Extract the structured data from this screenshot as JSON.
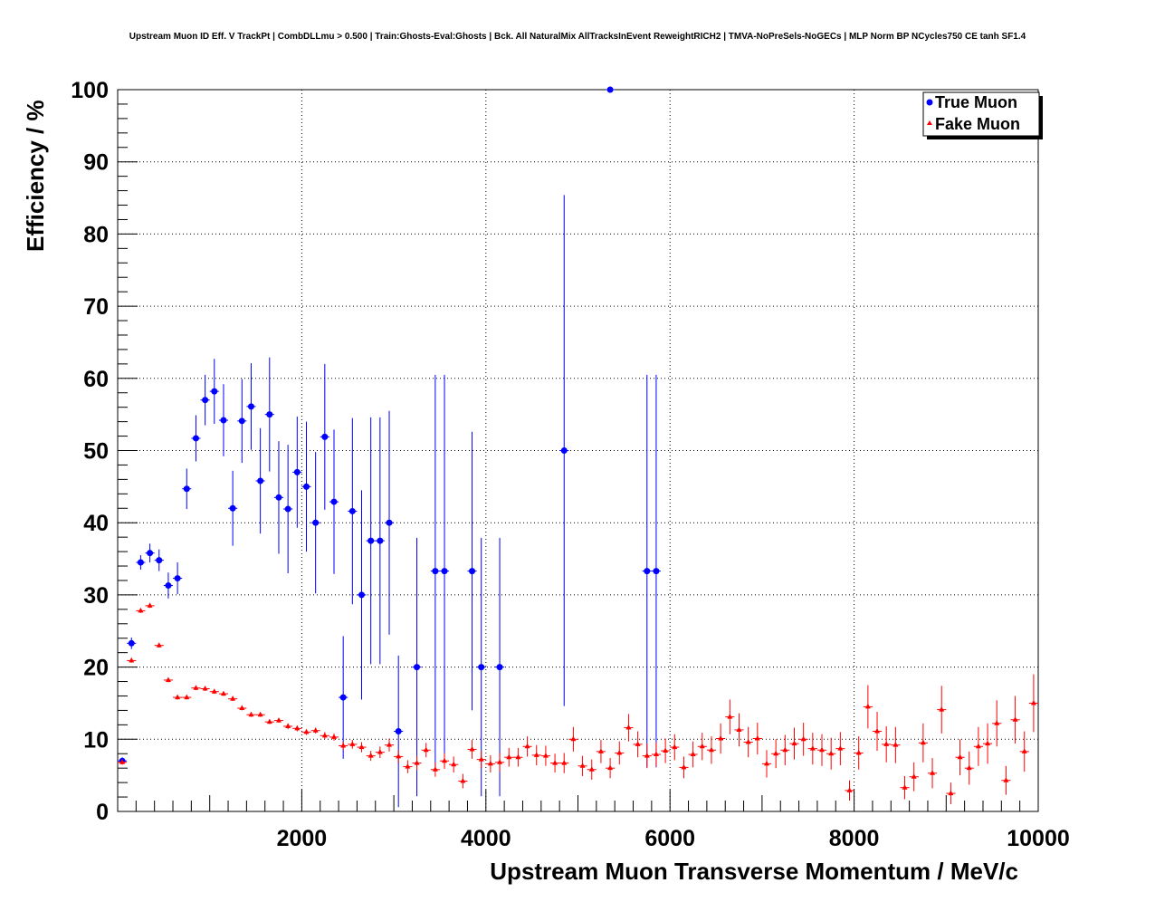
{
  "chart_data": {
    "type": "scatter",
    "title": "Upstream Muon ID Eff. V TrackPt | CombDLLmu > 0.500 | Train:Ghosts-Eval:Ghosts | Bck. All NaturalMix AllTracksInEvent ReweightRICH2 | TMVA-NoPreSels-NoGECs | MLP Norm BP NCycles750 CE tanh SF1.4",
    "xlabel": "Upstream Muon Transverse Momentum / MeV/c",
    "ylabel": "Efficiency / %",
    "xlim": [
      0,
      10000
    ],
    "ylim": [
      0,
      100
    ],
    "x_ticks": [
      "2000",
      "4000",
      "6000",
      "8000",
      "10000"
    ],
    "y_ticks": [
      "0",
      "10",
      "20",
      "30",
      "40",
      "50",
      "60",
      "70",
      "80",
      "90",
      "100"
    ],
    "grid": true,
    "legend_position": "top-right",
    "series": [
      {
        "name": "True Muon",
        "color": "#0000ff",
        "marker": "circle",
        "points": [
          {
            "x": 50,
            "y": 7.0,
            "err": 0.5
          },
          {
            "x": 150,
            "y": 23.3,
            "err": 0.8
          },
          {
            "x": 250,
            "y": 34.5,
            "err": 1.0
          },
          {
            "x": 350,
            "y": 35.8,
            "err": 1.3
          },
          {
            "x": 450,
            "y": 34.8,
            "err": 1.5
          },
          {
            "x": 550,
            "y": 31.3,
            "err": 1.8
          },
          {
            "x": 650,
            "y": 32.3,
            "err": 2.2
          },
          {
            "x": 750,
            "y": 44.7,
            "err": 2.8
          },
          {
            "x": 850,
            "y": 51.7,
            "err": 3.2
          },
          {
            "x": 950,
            "y": 57.0,
            "err": 3.5
          },
          {
            "x": 1050,
            "y": 58.2,
            "err": 4.5
          },
          {
            "x": 1150,
            "y": 54.2,
            "err": 5.0
          },
          {
            "x": 1250,
            "y": 42.0,
            "err": 5.2
          },
          {
            "x": 1350,
            "y": 54.1,
            "err": 5.8
          },
          {
            "x": 1450,
            "y": 56.1,
            "err": 6.0
          },
          {
            "x": 1550,
            "y": 45.8,
            "err": 7.3
          },
          {
            "x": 1650,
            "y": 55.0,
            "err": 7.9
          },
          {
            "x": 1750,
            "y": 43.5,
            "err": 7.8
          },
          {
            "x": 1850,
            "y": 41.9,
            "err": 8.9
          },
          {
            "x": 1950,
            "y": 47.0,
            "err": 7.7
          },
          {
            "x": 2050,
            "y": 45.0,
            "err": 9.0
          },
          {
            "x": 2150,
            "y": 40.0,
            "err": 9.8
          },
          {
            "x": 2250,
            "y": 51.9,
            "err": 10.1
          },
          {
            "x": 2350,
            "y": 42.9,
            "err": 10.0
          },
          {
            "x": 2450,
            "y": 15.8,
            "err": 8.5
          },
          {
            "x": 2550,
            "y": 41.6,
            "err": 12.9
          },
          {
            "x": 2650,
            "y": 30.0,
            "err": 14.5
          },
          {
            "x": 2750,
            "y": 37.5,
            "err": 17.1
          },
          {
            "x": 2850,
            "y": 37.5,
            "err": 17.1
          },
          {
            "x": 2950,
            "y": 40.0,
            "err": 15.5
          },
          {
            "x": 3050,
            "y": 11.1,
            "err": 10.5
          },
          {
            "x": 3250,
            "y": 20.0,
            "err": 17.9
          },
          {
            "x": 3450,
            "y": 33.3,
            "err": 27.2
          },
          {
            "x": 3550,
            "y": 33.3,
            "err": 27.2
          },
          {
            "x": 3850,
            "y": 33.3,
            "err": 19.3
          },
          {
            "x": 3950,
            "y": 20.0,
            "err": 17.9
          },
          {
            "x": 4150,
            "y": 20.0,
            "err": 17.9
          },
          {
            "x": 4850,
            "y": 50.0,
            "err": 35.4
          },
          {
            "x": 5350,
            "y": 100.0,
            "err": 0.0
          },
          {
            "x": 5750,
            "y": 33.3,
            "err": 27.2
          },
          {
            "x": 5850,
            "y": 33.3,
            "err": 27.2
          }
        ]
      },
      {
        "name": "Fake Muon",
        "color": "#ff0000",
        "marker": "triangle",
        "points": [
          {
            "x": 50,
            "y": 6.8,
            "err": 0.3
          },
          {
            "x": 150,
            "y": 20.9,
            "err": 0.3
          },
          {
            "x": 250,
            "y": 27.8,
            "err": 0.3
          },
          {
            "x": 350,
            "y": 28.5,
            "err": 0.3
          },
          {
            "x": 450,
            "y": 23.0,
            "err": 0.3
          },
          {
            "x": 550,
            "y": 18.2,
            "err": 0.3
          },
          {
            "x": 650,
            "y": 15.8,
            "err": 0.3
          },
          {
            "x": 750,
            "y": 15.8,
            "err": 0.3
          },
          {
            "x": 850,
            "y": 17.1,
            "err": 0.3
          },
          {
            "x": 950,
            "y": 17.0,
            "err": 0.3
          },
          {
            "x": 1050,
            "y": 16.6,
            "err": 0.3
          },
          {
            "x": 1150,
            "y": 16.3,
            "err": 0.3
          },
          {
            "x": 1250,
            "y": 15.6,
            "err": 0.3
          },
          {
            "x": 1350,
            "y": 14.3,
            "err": 0.3
          },
          {
            "x": 1450,
            "y": 13.4,
            "err": 0.3
          },
          {
            "x": 1550,
            "y": 13.4,
            "err": 0.3
          },
          {
            "x": 1650,
            "y": 12.4,
            "err": 0.3
          },
          {
            "x": 1750,
            "y": 12.6,
            "err": 0.3
          },
          {
            "x": 1850,
            "y": 11.8,
            "err": 0.4
          },
          {
            "x": 1950,
            "y": 11.5,
            "err": 0.4
          },
          {
            "x": 2050,
            "y": 11.0,
            "err": 0.4
          },
          {
            "x": 2150,
            "y": 11.2,
            "err": 0.4
          },
          {
            "x": 2250,
            "y": 10.5,
            "err": 0.5
          },
          {
            "x": 2350,
            "y": 10.3,
            "err": 0.5
          },
          {
            "x": 2450,
            "y": 9.1,
            "err": 0.6
          },
          {
            "x": 2550,
            "y": 9.3,
            "err": 0.6
          },
          {
            "x": 2650,
            "y": 8.9,
            "err": 0.7
          },
          {
            "x": 2750,
            "y": 7.7,
            "err": 0.7
          },
          {
            "x": 2850,
            "y": 8.2,
            "err": 0.8
          },
          {
            "x": 2950,
            "y": 9.2,
            "err": 0.9
          },
          {
            "x": 3050,
            "y": 7.6,
            "err": 0.9
          },
          {
            "x": 3150,
            "y": 6.2,
            "err": 0.9
          },
          {
            "x": 3250,
            "y": 6.7,
            "err": 1.0
          },
          {
            "x": 3350,
            "y": 8.5,
            "err": 1.0
          },
          {
            "x": 3450,
            "y": 5.8,
            "err": 1.0
          },
          {
            "x": 3550,
            "y": 7.0,
            "err": 1.1
          },
          {
            "x": 3650,
            "y": 6.5,
            "err": 1.1
          },
          {
            "x": 3750,
            "y": 4.2,
            "err": 1.0
          },
          {
            "x": 3850,
            "y": 8.6,
            "err": 1.3
          },
          {
            "x": 3950,
            "y": 7.2,
            "err": 1.2
          },
          {
            "x": 4050,
            "y": 6.6,
            "err": 1.2
          },
          {
            "x": 4150,
            "y": 6.8,
            "err": 1.3
          },
          {
            "x": 4250,
            "y": 7.5,
            "err": 1.3
          },
          {
            "x": 4350,
            "y": 7.5,
            "err": 1.3
          },
          {
            "x": 4450,
            "y": 9.0,
            "err": 1.4
          },
          {
            "x": 4550,
            "y": 7.8,
            "err": 1.4
          },
          {
            "x": 4650,
            "y": 7.7,
            "err": 1.4
          },
          {
            "x": 4750,
            "y": 6.7,
            "err": 1.3
          },
          {
            "x": 4850,
            "y": 6.7,
            "err": 1.4
          },
          {
            "x": 4950,
            "y": 10.0,
            "err": 1.7
          },
          {
            "x": 5050,
            "y": 6.3,
            "err": 1.4
          },
          {
            "x": 5150,
            "y": 5.8,
            "err": 1.4
          },
          {
            "x": 5250,
            "y": 8.3,
            "err": 1.6
          },
          {
            "x": 5350,
            "y": 6.0,
            "err": 1.4
          },
          {
            "x": 5450,
            "y": 8.1,
            "err": 1.6
          },
          {
            "x": 5550,
            "y": 11.6,
            "err": 1.9
          },
          {
            "x": 5650,
            "y": 9.3,
            "err": 1.8
          },
          {
            "x": 5750,
            "y": 7.7,
            "err": 1.7
          },
          {
            "x": 5850,
            "y": 7.9,
            "err": 1.7
          },
          {
            "x": 5950,
            "y": 8.4,
            "err": 1.7
          },
          {
            "x": 6050,
            "y": 8.9,
            "err": 1.8
          },
          {
            "x": 6150,
            "y": 6.1,
            "err": 1.5
          },
          {
            "x": 6250,
            "y": 7.9,
            "err": 1.8
          },
          {
            "x": 6350,
            "y": 9.0,
            "err": 1.9
          },
          {
            "x": 6450,
            "y": 8.5,
            "err": 1.9
          },
          {
            "x": 6550,
            "y": 10.1,
            "err": 2.1
          },
          {
            "x": 6650,
            "y": 13.1,
            "err": 2.4
          },
          {
            "x": 6750,
            "y": 11.3,
            "err": 2.3
          },
          {
            "x": 6850,
            "y": 9.6,
            "err": 2.1
          },
          {
            "x": 6950,
            "y": 10.1,
            "err": 2.2
          },
          {
            "x": 7050,
            "y": 6.6,
            "err": 1.9
          },
          {
            "x": 7150,
            "y": 8.0,
            "err": 2.0
          },
          {
            "x": 7250,
            "y": 8.5,
            "err": 2.1
          },
          {
            "x": 7350,
            "y": 9.4,
            "err": 2.2
          },
          {
            "x": 7450,
            "y": 10.0,
            "err": 2.3
          },
          {
            "x": 7550,
            "y": 8.7,
            "err": 2.2
          },
          {
            "x": 7650,
            "y": 8.5,
            "err": 2.2
          },
          {
            "x": 7750,
            "y": 8.0,
            "err": 2.2
          },
          {
            "x": 7850,
            "y": 8.7,
            "err": 2.3
          },
          {
            "x": 7950,
            "y": 2.9,
            "err": 1.4
          },
          {
            "x": 8050,
            "y": 8.1,
            "err": 2.3
          },
          {
            "x": 8150,
            "y": 14.5,
            "err": 3.0
          },
          {
            "x": 8250,
            "y": 11.1,
            "err": 2.7
          },
          {
            "x": 8350,
            "y": 9.3,
            "err": 2.5
          },
          {
            "x": 8450,
            "y": 9.2,
            "err": 2.5
          },
          {
            "x": 8550,
            "y": 3.3,
            "err": 1.6
          },
          {
            "x": 8650,
            "y": 4.8,
            "err": 2.0
          },
          {
            "x": 8750,
            "y": 9.5,
            "err": 2.7
          },
          {
            "x": 8850,
            "y": 5.3,
            "err": 2.1
          },
          {
            "x": 8950,
            "y": 14.1,
            "err": 3.3
          },
          {
            "x": 9050,
            "y": 2.5,
            "err": 1.5
          },
          {
            "x": 9150,
            "y": 7.5,
            "err": 2.5
          },
          {
            "x": 9250,
            "y": 6.0,
            "err": 2.3
          },
          {
            "x": 9350,
            "y": 9.0,
            "err": 2.7
          },
          {
            "x": 9450,
            "y": 9.4,
            "err": 2.8
          },
          {
            "x": 9550,
            "y": 12.2,
            "err": 3.2
          },
          {
            "x": 9650,
            "y": 4.3,
            "err": 2.0
          },
          {
            "x": 9750,
            "y": 12.7,
            "err": 3.3
          },
          {
            "x": 9850,
            "y": 8.3,
            "err": 2.8
          },
          {
            "x": 9950,
            "y": 15.0,
            "err": 4.0
          }
        ]
      }
    ]
  }
}
